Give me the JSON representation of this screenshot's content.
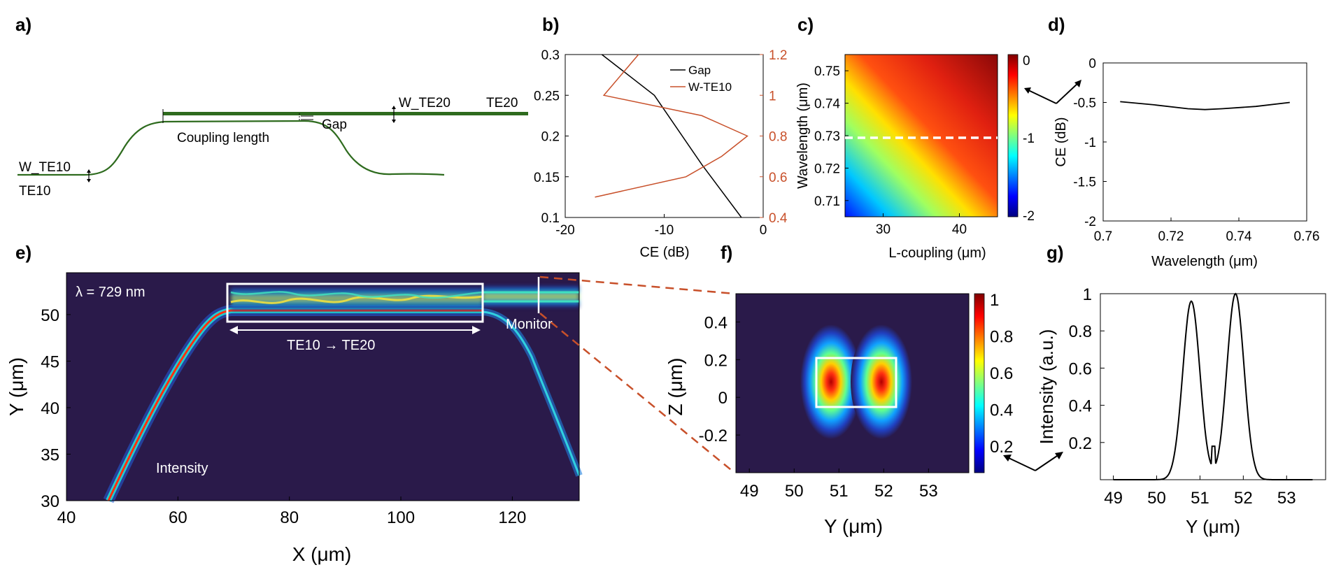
{
  "panel_labels": {
    "a": "a)",
    "b": "b)",
    "c": "c)",
    "d": "d)",
    "e": "e)",
    "f": "f)",
    "g": "g)"
  },
  "colors": {
    "waveguide": "#2e6b1e",
    "gap_curve": "#000000",
    "wte10_curve": "#c8502a",
    "dark_bg": "#2a1a4a"
  },
  "panel_a": {
    "labels": {
      "w_te20": "W_TE20",
      "te20": "TE20",
      "gap": "Gap",
      "coupling_length": "Coupling length",
      "w_te10": "W_TE10",
      "te10": "TE10"
    }
  },
  "chart_data": [
    {
      "id": "b",
      "type": "line",
      "xlabel": "CE (dB)",
      "xlim": [
        -20,
        0
      ],
      "xticks": [
        "-20",
        "-10",
        "0"
      ],
      "ylim_left": [
        0.1,
        0.3
      ],
      "yticks_left": [
        "0.1",
        "0.15",
        "0.2",
        "0.25",
        "0.3"
      ],
      "ylim_right": [
        0.4,
        1.2
      ],
      "yticks_right": [
        "0.4",
        "0.6",
        "0.8",
        "1",
        "1.2"
      ],
      "legend": [
        "Gap",
        "W-TE10"
      ],
      "series": [
        {
          "name": "Gap",
          "axis": "left",
          "points": [
            [
              -16.3,
              0.3
            ],
            [
              -11,
              0.25
            ],
            [
              -6.2,
              0.165
            ],
            [
              -2.2,
              0.1
            ]
          ]
        },
        {
          "name": "W-TE10",
          "axis": "right",
          "points": [
            [
              -12.6,
              1.2
            ],
            [
              -16.1,
              1.0
            ],
            [
              -6.2,
              0.9
            ],
            [
              -1.6,
              0.8
            ],
            [
              -4.2,
              0.7
            ],
            [
              -7.8,
              0.6
            ],
            [
              -17.0,
              0.5
            ]
          ]
        }
      ]
    },
    {
      "id": "c",
      "type": "heatmap",
      "xlabel": "L-coupling (μm)",
      "ylabel": "Wavelength (μm)",
      "xlim": [
        25,
        45
      ],
      "xticks": [
        "30",
        "40"
      ],
      "ylim": [
        0.705,
        0.755
      ],
      "yticks": [
        "0.71",
        "0.72",
        "0.73",
        "0.74",
        "0.75"
      ],
      "colorbar": {
        "min": -2,
        "max": 0,
        "ticks": [
          "0",
          "-1",
          "-2"
        ]
      },
      "dashed_line_wavelength": 0.729
    },
    {
      "id": "d",
      "type": "line",
      "xlabel": "Wavelength (μm)",
      "ylabel": "CE (dB)",
      "xlim": [
        0.7,
        0.76
      ],
      "xticks": [
        "0.7",
        "0.72",
        "0.74",
        "0.76"
      ],
      "ylim": [
        -2,
        0
      ],
      "yticks": [
        "0",
        "-0.5",
        "-1",
        "-1.5",
        "-2"
      ],
      "series": [
        {
          "name": "CE",
          "x": [
            0.705,
            0.715,
            0.725,
            0.73,
            0.735,
            0.745,
            0.755
          ],
          "y": [
            -0.49,
            -0.53,
            -0.58,
            -0.59,
            -0.58,
            -0.55,
            -0.5
          ]
        }
      ]
    },
    {
      "id": "e",
      "type": "heatmap",
      "xlabel": "X (μm)",
      "ylabel": "Y (μm)",
      "xlim": [
        40,
        132
      ],
      "xticks": [
        "40",
        "60",
        "80",
        "100",
        "120"
      ],
      "ylim": [
        30,
        54.5
      ],
      "yticks": [
        "30",
        "35",
        "40",
        "45",
        "50"
      ],
      "annotations": {
        "wavelength": "λ = 729 nm",
        "mode": "TE10  →  TE20",
        "intensity": "Intensity",
        "monitor": "Monitor"
      }
    },
    {
      "id": "f",
      "type": "heatmap",
      "xlabel": "Y (μm)",
      "ylabel": "Z (μm)",
      "xlim": [
        48.7,
        53.9
      ],
      "xticks": [
        "49",
        "50",
        "51",
        "52",
        "53"
      ],
      "ylim": [
        -0.4,
        0.55
      ],
      "yticks": [
        "-0.2",
        "0",
        "0.2",
        "0.4"
      ],
      "colorbar": {
        "min": 0.1,
        "max": 1,
        "ticks": [
          "1",
          "0.8",
          "0.6",
          "0.4",
          "0.2"
        ]
      }
    },
    {
      "id": "g",
      "type": "line",
      "xlabel": "Y (μm)",
      "ylabel": "Intensity (a.u.)",
      "xlim": [
        48.7,
        53.9
      ],
      "xticks": [
        "49",
        "50",
        "51",
        "52",
        "53"
      ],
      "ylim": [
        0,
        1
      ],
      "yticks": [
        "0.2",
        "0.4",
        "0.6",
        "0.8",
        "1"
      ],
      "series": [
        {
          "name": "Intensity",
          "peaks": [
            {
              "center": 50.8,
              "amplitude": 0.96
            },
            {
              "center": 51.82,
              "amplitude": 1.0
            }
          ],
          "dip": 0.18
        }
      ]
    }
  ]
}
